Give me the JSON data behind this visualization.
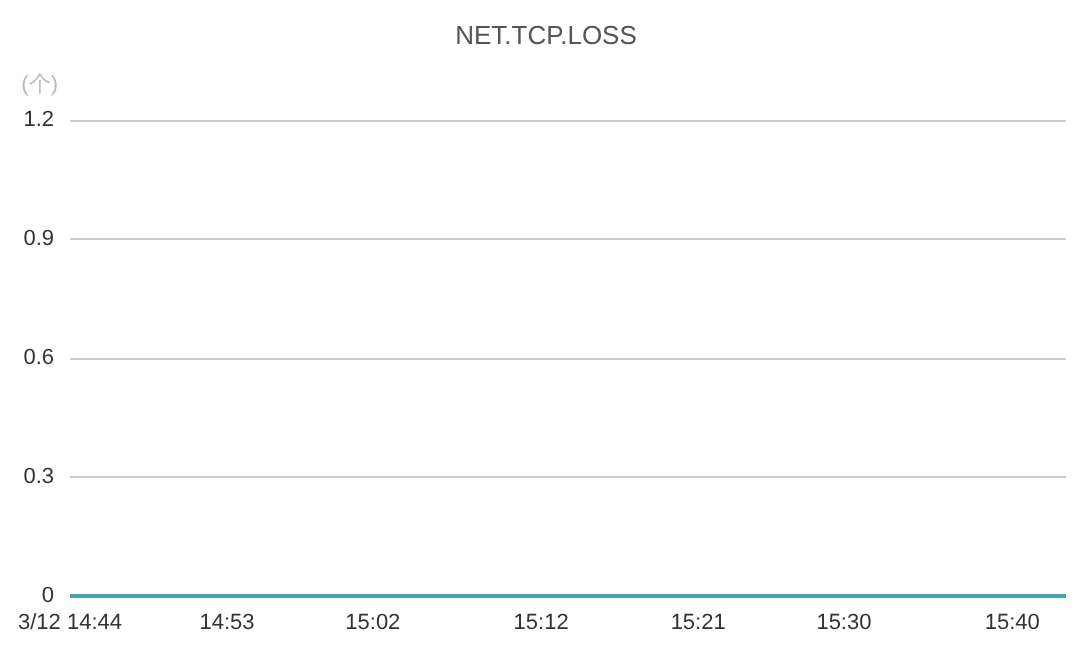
{
  "chart_data": {
    "type": "line",
    "title": "NET.TCP.LOSS",
    "ylabel": "(个)",
    "x": [
      14.7333,
      15.72
    ],
    "series": [
      {
        "color": "#4aa3b5",
        "values": [
          0,
          0
        ]
      }
    ],
    "xlim": [
      14.7333,
      15.72
    ],
    "xticks": [
      {
        "value": 14.7333,
        "label": "3/12 14:44"
      },
      {
        "value": 14.8889,
        "label": "14:53"
      },
      {
        "value": 15.0333,
        "label": "15:02"
      },
      {
        "value": 15.2,
        "label": "15:12"
      },
      {
        "value": 15.3556,
        "label": "15:21"
      },
      {
        "value": 15.5,
        "label": "15:30"
      },
      {
        "value": 15.6667,
        "label": "15:40"
      }
    ],
    "ylim": [
      0,
      1.2
    ],
    "yticks": [
      0,
      0.3,
      0.6,
      0.9,
      1.2
    ],
    "grid": "y",
    "marker": "none",
    "line_style": "solid"
  }
}
